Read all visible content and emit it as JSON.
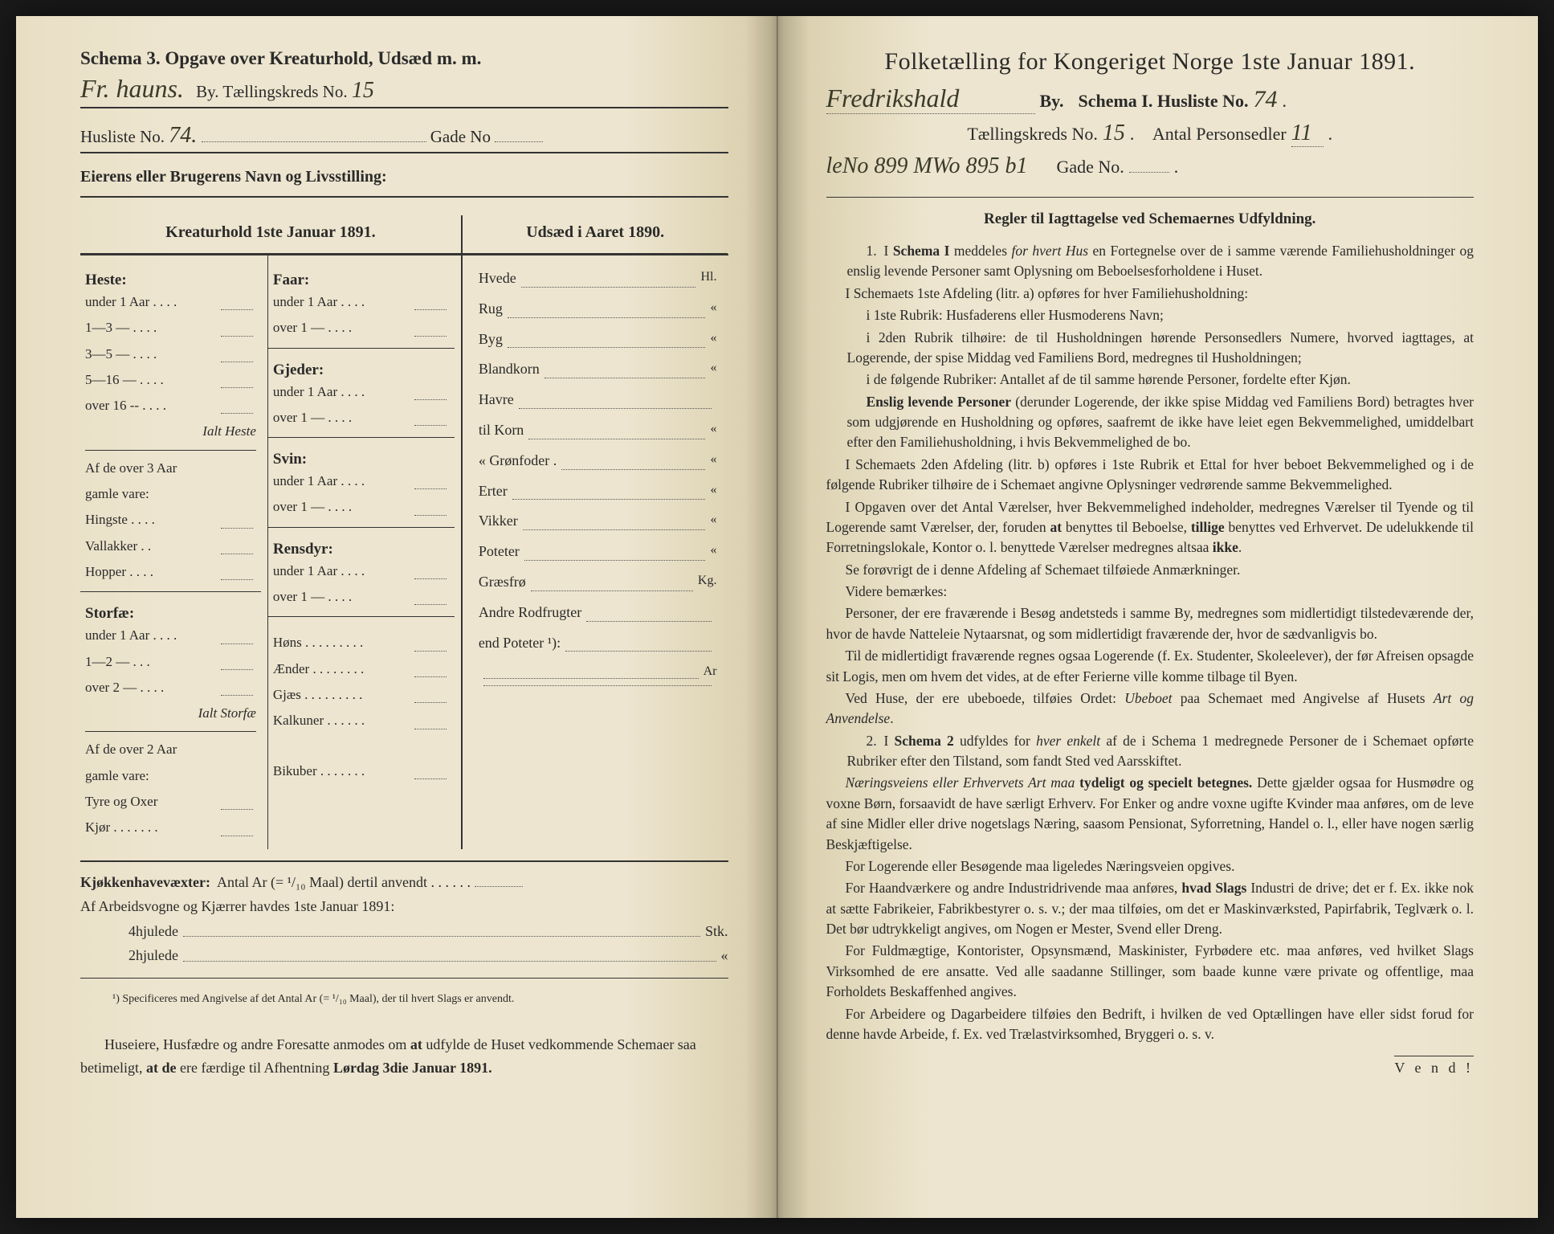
{
  "left": {
    "schema_header": "Schema 3.  Opgave over Kreaturhold, Udsæd m. m.",
    "handwritten_town": "Fr. hauns.",
    "by_label": "By.  Tællingskreds No.",
    "kreds_no_hw": "15",
    "husliste_label": "Husliste No.",
    "husliste_no_hw": "74.",
    "gade_label": "Gade No",
    "eierens": "Eierens eller Brugerens Navn og Livsstilling:",
    "kreatur_header": "Kreaturhold 1ste Januar 1891.",
    "udsaed_header": "Udsæd i Aaret 1890.",
    "heste_title": "Heste:",
    "heste_rows": [
      "under 1 Aar . . . .",
      "1—3   —  . . . .",
      "3—5   —  . . . .",
      "5—16  —  . . . .",
      "over 16 -- . . . ."
    ],
    "ialt_heste": "Ialt Heste",
    "af3aar": "Af de over 3 Aar",
    "gamle_vare": "gamle vare:",
    "heste_sub": [
      "Hingste . . . .",
      "Vallakker . .",
      "Hopper . . . ."
    ],
    "storfae_title": "Storfæ:",
    "storfae_rows": [
      "under 1 Aar . . . .",
      "1—2   —  . . .",
      "over 2   —  . . . ."
    ],
    "ialt_storfae": "Ialt Storfæ",
    "af2aar": "Af de over 2 Aar",
    "storfae_sub": [
      "Tyre og Oxer",
      "Kjør . . . . . . ."
    ],
    "faar_title": "Faar:",
    "faar_rows": [
      "under 1 Aar . . . .",
      "over 1   —  . . . ."
    ],
    "gjeder_title": "Gjeder:",
    "gjeder_rows": [
      "under 1 Aar . . . .",
      "over 1   —  . . . ."
    ],
    "svin_title": "Svin:",
    "svin_rows": [
      "under 1 Aar . . . .",
      "over 1   —  . . . ."
    ],
    "rensdyr_title": "Rensdyr:",
    "rensdyr_rows": [
      "under 1 Aar . . . .",
      "over 1   —  . . . ."
    ],
    "poultry": [
      "Høns . . . . . . . . .",
      "Ænder . . . . . . . .",
      "Gjæs . . . . . . . . .",
      "Kalkuner . . . . . .",
      "Bikuber . . . . . . ."
    ],
    "udsaed_rows": [
      {
        "label": "Hvede",
        "unit": "Hl."
      },
      {
        "label": "Rug",
        "unit": "«"
      },
      {
        "label": "Byg",
        "unit": "«"
      },
      {
        "label": "Blandkorn",
        "unit": "«"
      },
      {
        "label": "Havre",
        "unit": ""
      },
      {
        "label": "   til Korn",
        "unit": "«"
      },
      {
        "label": "   «  Grønfoder .",
        "unit": "«"
      },
      {
        "label": "Erter",
        "unit": "«"
      },
      {
        "label": "Vikker",
        "unit": "«"
      },
      {
        "label": "Poteter",
        "unit": "«"
      },
      {
        "label": "Græsfrø",
        "unit": "Kg."
      },
      {
        "label": "Andre Rodfrugter",
        "unit": ""
      },
      {
        "label": "   end Poteter ¹):",
        "unit": ""
      },
      {
        "label": "",
        "unit": "Ar"
      },
      {
        "label": "",
        "unit": ""
      }
    ],
    "kjokken": "Kjøkkenhavevæxter:  Antal Ar (= ¹/₁₀ Maal) dertil anvendt . . . . . .",
    "arbeids": "Af Arbeidsvogne og Kjærrer havdes 1ste Januar 1891:",
    "hjul4": "4hjulede",
    "hjul4_unit": "Stk.",
    "hjul2": "2hjulede",
    "hjul2_unit": "«",
    "footnote": "¹) Specificeres med Angivelse af det Antal Ar (= ¹/₁₀ Maal), der til hvert Slags er anvendt.",
    "closing": "Huseiere, Husfædre og andre Foresatte anmodes om at udfylde de Huset vedkommende Schemaer saa betimeligt, at de ere færdige til Afhentning Lørdag 3die Januar 1891."
  },
  "right": {
    "title": "Folketælling for Kongeriget Norge 1ste Januar 1891.",
    "town_hw": "Fredrikshald",
    "by": "By.",
    "schema_label": "Schema I.  Husliste No.",
    "husliste_hw": "74",
    "kreds_label": "Tællingskreds No.",
    "kreds_hw": "15",
    "antal_label": "Antal Personsedler",
    "antal_hw": "11",
    "extra_hw": "leNo 899 MWo 895 b1",
    "gade_label": "Gade No.",
    "regler_title": "Regler til Iagttagelse ved Schemaernes Udfyldning.",
    "r1a": "I Schema I meddeles for hvert Hus en Fortegnelse over de i samme værende Familiehusholdninger og enslig levende Personer samt Oplysning om Beboelsesforholdene i Huset.",
    "r1b": "I Schemaets 1ste Afdeling (litr. a) opføres for hver Familiehusholdning:",
    "r1c": "i 1ste Rubrik: Husfaderens eller Husmoderens Navn;",
    "r1d": "i 2den Rubrik tilhøire: de til Husholdningen hørende Personsedlers Numere, hvorved iagttages, at Logerende, der spise Middag ved Familiens Bord, medregnes til Husholdningen;",
    "r1e": "i de følgende Rubriker: Antallet af de til samme hørende Personer, fordelte efter Kjøn.",
    "r1f": "Enslig levende Personer (derunder Logerende, der ikke spise Middag ved Familiens Bord) betragtes hver som udgjørende en Husholdning og opføres, saafremt de ikke have leiet egen Bekvemmelighed, umiddelbart efter den Familiehusholdning, i hvis Bekvemmelighed de bo.",
    "r1g": "I Schemaets 2den Afdeling (litr. b) opføres i 1ste Rubrik et Ettal for hver beboet Bekvemmelighed og i de følgende Rubriker tilhøire de i Schemaet angivne Oplysninger vedrørende samme Bekvemmelighed.",
    "r1h": "I Opgaven over det Antal Værelser, hver Bekvemmelighed indeholder, medregnes Værelser til Tyende og til Logerende samt Værelser, der, foruden at benyttes til Beboelse, tillige benyttes ved Erhvervet.  De udelukkende til Forretningslokale, Kontor o. l. benyttede Værelser medregnes altsaa ikke.",
    "r1i": "Se forøvrigt de i denne Afdeling af Schemaet tilføiede Anmærkninger.",
    "r1j": "Videre bemærkes:",
    "r1k": "Personer, der ere fraværende i Besøg andetsteds i samme By, medregnes som midlertidigt tilstedeværende der, hvor de havde Natteleie Nytaarsnat, og som midlertidigt fraværende der, hvor de sædvanligvis bo.",
    "r1l": "Til de midlertidigt fraværende regnes ogsaa Logerende (f. Ex. Studenter, Skoleelever), der før Afreisen opsagde sit Logis, men om hvem det vides, at de efter Ferierne ville komme tilbage til Byen.",
    "r1m": "Ved Huse, der ere ubeboede, tilføies Ordet: Ubeboet paa Schemaet med Angivelse af Husets Art og Anvendelse.",
    "r2a": "I Schema 2 udfyldes for hver enkelt af de i Schema 1 medregnede Personer de i Schemaet opførte Rubriker efter den Tilstand, som fandt Sted ved Aarsskiftet.",
    "r2b": "Næringsveiens eller Erhvervets Art maa tydeligt og specielt betegnes. Dette gjælder ogsaa for Husmødre og voxne Børn, forsaavidt de have særligt Erhverv.  For Enker og andre voxne ugifte Kvinder maa anføres, om de leve af sine Midler eller drive nogetslags Næring, saasom Pensionat, Syforretning, Handel o. l., eller have nogen særlig Beskjæftigelse.",
    "r2c": "For Logerende eller Besøgende maa ligeledes Næringsveien opgives.",
    "r2d": "For Haandværkere og andre Industridrivende maa anføres, hvad Slags Industri de drive; det er f. Ex. ikke nok at sætte Fabrikeier, Fabrikbestyrer o. s. v.; der maa tilføies, om det er Maskinværksted, Papirfabrik, Teglværk o. l.  Det bør udtrykkeligt angives, om Nogen er Mester, Svend eller Dreng.",
    "r2e": "For Fuldmægtige, Kontorister, Opsynsmænd, Maskinister, Fyrbødere etc. maa anføres, ved hvilket Slags Virksomhed de ere ansatte.  Ved alle saadanne Stillinger, som baade kunne være private og offentlige, maa Forholdets Beskaffenhed angives.",
    "r2f": "For Arbeidere og Dagarbeidere tilføies den Bedrift, i hvilken de ved Optællingen have eller sidst forud for denne havde Arbeide, f. Ex. ved Trælastvirksomhed, Bryggeri o. s. v.",
    "vend": "V e n d !"
  }
}
